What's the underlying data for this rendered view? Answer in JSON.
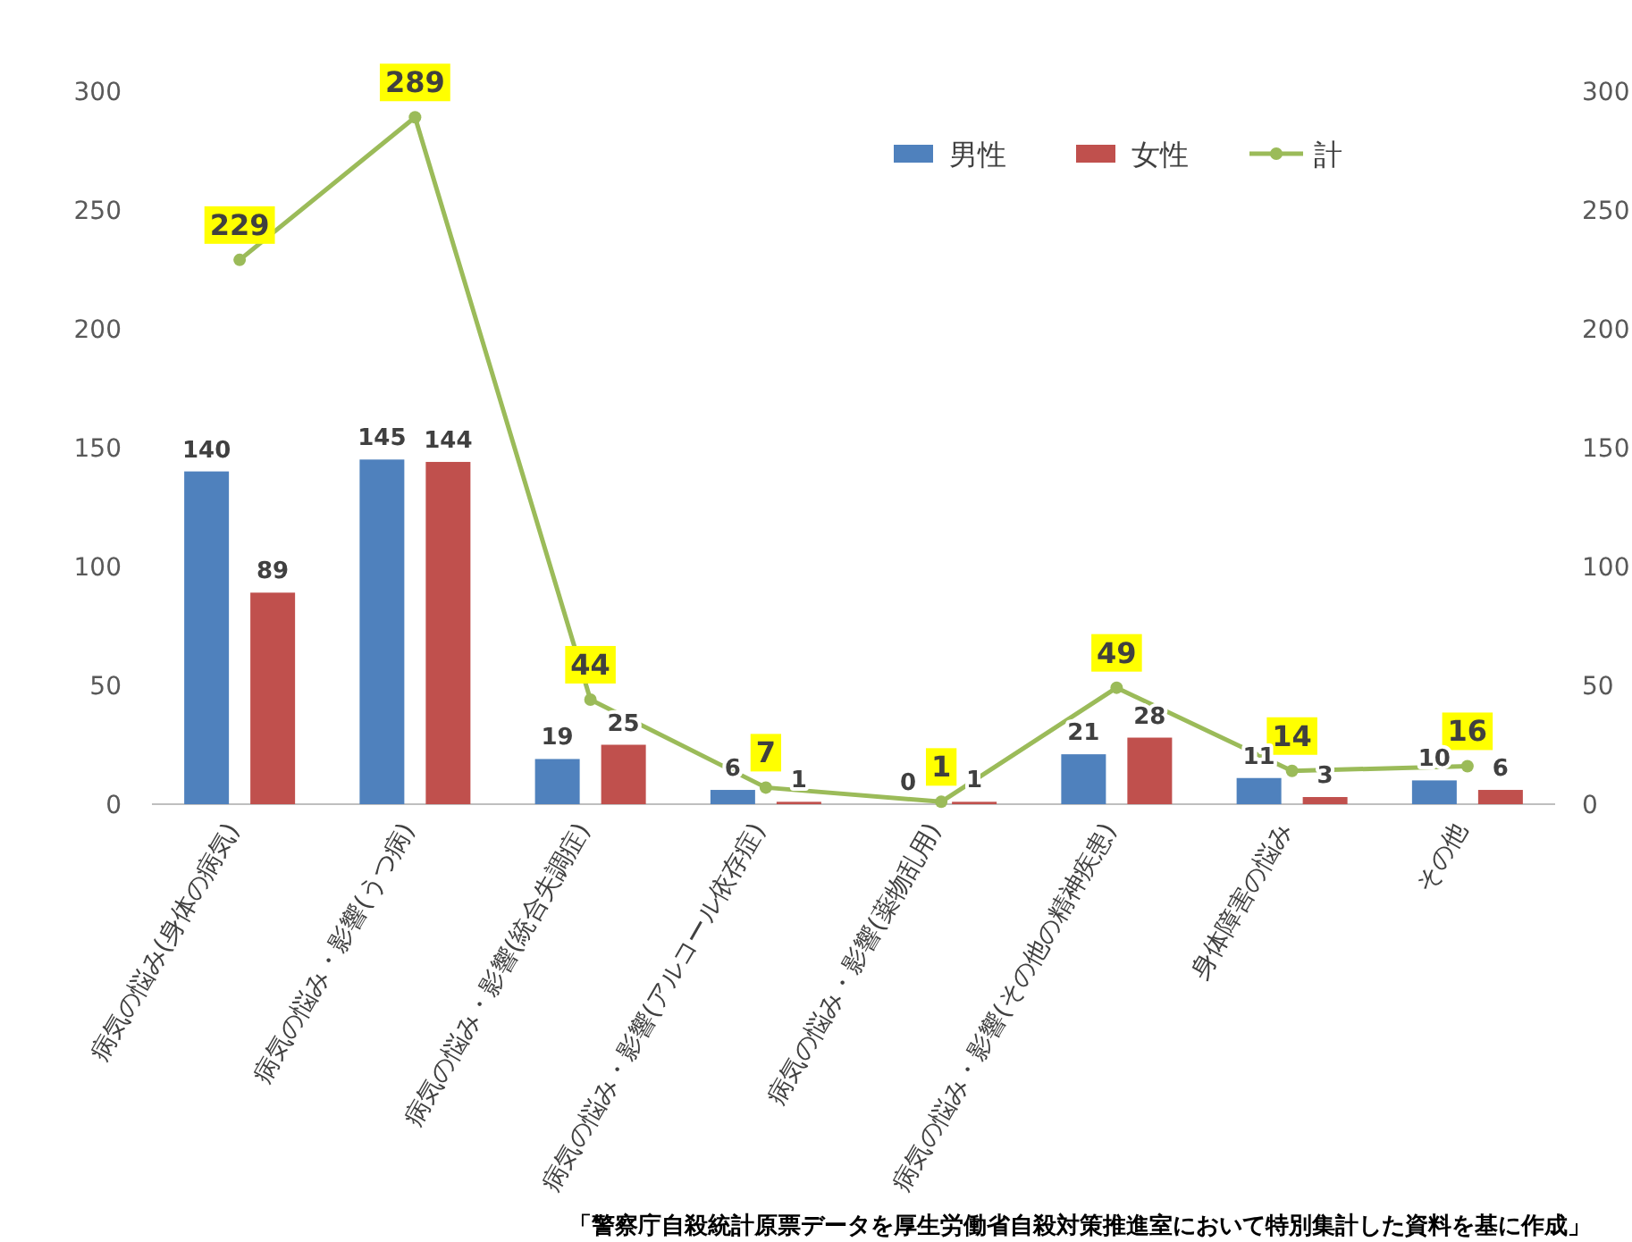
{
  "chart_data": {
    "type": "bar",
    "categories": [
      "病気の悩み(身体の病気)",
      "病気の悩み・影響(うつ病)",
      "病気の悩み・影響(統合失調症)",
      "病気の悩み・影響(アルコール依存症)",
      "病気の悩み・影響(薬物乱用)",
      "病気の悩み・影響(その他の精神疾患)",
      "身体障害の悩み",
      "その他"
    ],
    "series": [
      {
        "name": "男性",
        "color": "#4f81bd",
        "values": [
          140,
          145,
          19,
          6,
          0,
          21,
          11,
          10
        ]
      },
      {
        "name": "女性",
        "color": "#c0504d",
        "values": [
          89,
          144,
          25,
          1,
          1,
          28,
          3,
          6
        ]
      },
      {
        "name": "計",
        "type": "line",
        "color": "#9bbb59",
        "values": [
          229,
          289,
          44,
          7,
          1,
          49,
          14,
          16
        ]
      }
    ],
    "ylim": [
      0,
      300
    ],
    "yticks": [
      0,
      50,
      100,
      150,
      200,
      250,
      300
    ],
    "y2lim": [
      0,
      300
    ],
    "y2ticks": [
      0,
      50,
      100,
      150,
      200,
      250,
      300
    ],
    "data_labels": true,
    "legend": "top right",
    "marker": "circle",
    "grid": false,
    "annotations": [
      "「警察庁自殺統計原票データを厚生労働省自殺対策推進室において特別集計した資料を基に作成」"
    ]
  }
}
